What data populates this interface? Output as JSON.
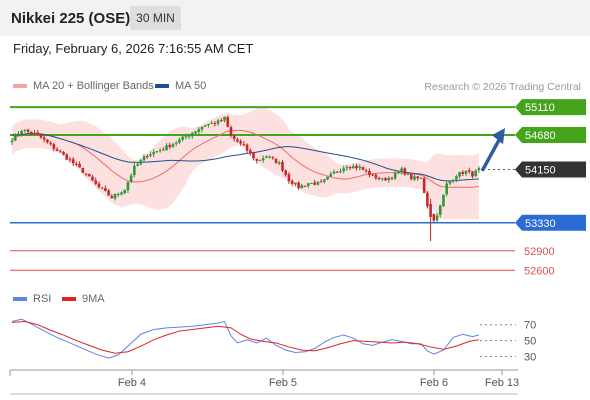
{
  "header": {
    "title": "Nikkei 225 (OSE)",
    "timeframe": "30 MIN",
    "datetime": "Friday, February 6, 2026 7:16:55 AM CET"
  },
  "legend": {
    "ma20_label": "MA 20 + Bollinger Bands",
    "ma50_label": "MA 50",
    "credit": "Research © 2026 Trading Central",
    "rsi_label": "RSI",
    "rsi_ma_label": "9MA"
  },
  "colors": {
    "ma20": "#f06b6b",
    "bollinger_fill": "#fde0e0",
    "ma50": "#1f4f8f",
    "candle_up": "#2e9a37",
    "candle_down": "#c62828",
    "resistance": "#44a51c",
    "pivot": "#2a6bd6",
    "support": "#e05050",
    "last_price_bg": "#333333",
    "arrow": "#2d5d9f",
    "rsi": "#5b87e0",
    "rsi_ma": "#e02424"
  },
  "chart_data": [
    {
      "type": "candlestick",
      "x_ticks": [
        "Feb 4",
        "Feb 5",
        "Feb 6",
        "Feb 13"
      ],
      "y_range": [
        52450,
        55250
      ],
      "levels": [
        {
          "value": 55110,
          "kind": "resistance",
          "label": "55110"
        },
        {
          "value": 54680,
          "kind": "resistance",
          "label": "54680"
        },
        {
          "value": 54150,
          "kind": "last-price",
          "label": "54150"
        },
        {
          "value": 53330,
          "kind": "pivot",
          "label": "53330"
        },
        {
          "value": 52900,
          "kind": "support",
          "label": "52900"
        },
        {
          "value": 52600,
          "kind": "support",
          "label": "52600"
        }
      ],
      "path_points": [
        [
          0,
          54620
        ],
        [
          3,
          54760
        ],
        [
          8,
          54680
        ],
        [
          13,
          54480
        ],
        [
          18,
          54290
        ],
        [
          22,
          54120
        ],
        [
          27,
          53870
        ],
        [
          31,
          53720
        ],
        [
          35,
          53850
        ],
        [
          38,
          54180
        ],
        [
          42,
          54380
        ],
        [
          47,
          54470
        ],
        [
          52,
          54600
        ],
        [
          56,
          54720
        ],
        [
          60,
          54840
        ],
        [
          64,
          54880
        ],
        [
          66,
          54940
        ],
        [
          68,
          54660
        ],
        [
          72,
          54500
        ],
        [
          76,
          54280
        ],
        [
          79,
          54360
        ],
        [
          83,
          54240
        ],
        [
          86,
          53990
        ],
        [
          89,
          53880
        ],
        [
          92,
          53940
        ],
        [
          96,
          53930
        ],
        [
          100,
          54100
        ],
        [
          104,
          54210
        ],
        [
          108,
          54180
        ],
        [
          112,
          54050
        ],
        [
          115,
          53990
        ],
        [
          118,
          54040
        ],
        [
          121,
          54140
        ],
        [
          124,
          54020
        ],
        [
          127,
          54010
        ],
        [
          129,
          53600
        ],
        [
          131,
          53360
        ],
        [
          133,
          53580
        ],
        [
          135,
          53920
        ],
        [
          138,
          54070
        ],
        [
          141,
          54120
        ],
        [
          143,
          54070
        ],
        [
          145,
          54150
        ]
      ],
      "breakdown_candle": {
        "index": 130,
        "open": 53620,
        "close": 53420,
        "high": 53700,
        "low": 53050
      },
      "forecast_arrow": {
        "from_value": 54150,
        "to_value": 55110
      }
    },
    {
      "type": "line",
      "title": "RSI",
      "y_ticks": [
        70,
        50,
        30
      ],
      "y_range": [
        18,
        86
      ],
      "series": [
        {
          "name": "RSI",
          "points": [
            [
              0,
              74
            ],
            [
              3,
              77
            ],
            [
              6,
              71
            ],
            [
              10,
              62
            ],
            [
              14,
              54
            ],
            [
              18,
              47
            ],
            [
              22,
              40
            ],
            [
              26,
              33
            ],
            [
              30,
              28
            ],
            [
              33,
              32
            ],
            [
              36,
              43
            ],
            [
              40,
              58
            ],
            [
              44,
              64
            ],
            [
              48,
              66
            ],
            [
              52,
              67
            ],
            [
              56,
              68
            ],
            [
              60,
              70
            ],
            [
              64,
              72
            ],
            [
              66,
              74
            ],
            [
              68,
              56
            ],
            [
              70,
              47
            ],
            [
              73,
              51
            ],
            [
              76,
              47
            ],
            [
              79,
              53
            ],
            [
              82,
              44
            ],
            [
              85,
              38
            ],
            [
              88,
              35
            ],
            [
              91,
              36
            ],
            [
              94,
              40
            ],
            [
              97,
              48
            ],
            [
              100,
              54
            ],
            [
              103,
              57
            ],
            [
              106,
              53
            ],
            [
              109,
              46
            ],
            [
              112,
              44
            ],
            [
              115,
              48
            ],
            [
              118,
              51
            ],
            [
              121,
              49
            ],
            [
              124,
              46
            ],
            [
              127,
              46
            ],
            [
              129,
              37
            ],
            [
              131,
              33
            ],
            [
              134,
              38
            ],
            [
              137,
              54
            ],
            [
              140,
              58
            ],
            [
              143,
              55
            ],
            [
              145,
              57
            ]
          ]
        },
        {
          "name": "9MA",
          "points": [
            [
              0,
              73
            ],
            [
              4,
              74
            ],
            [
              8,
              70
            ],
            [
              12,
              63
            ],
            [
              16,
              57
            ],
            [
              20,
              50
            ],
            [
              24,
              44
            ],
            [
              28,
              38
            ],
            [
              32,
              34
            ],
            [
              36,
              36
            ],
            [
              40,
              43
            ],
            [
              44,
              51
            ],
            [
              48,
              57
            ],
            [
              52,
              62
            ],
            [
              56,
              64
            ],
            [
              60,
              66
            ],
            [
              64,
              68
            ],
            [
              68,
              66
            ],
            [
              71,
              58
            ],
            [
              74,
              52
            ],
            [
              78,
              49
            ],
            [
              82,
              47
            ],
            [
              86,
              42
            ],
            [
              90,
              38
            ],
            [
              94,
              37
            ],
            [
              98,
              41
            ],
            [
              102,
              46
            ],
            [
              106,
              50
            ],
            [
              110,
              49
            ],
            [
              114,
              48
            ],
            [
              118,
              47
            ],
            [
              122,
              48
            ],
            [
              126,
              46
            ],
            [
              130,
              42
            ],
            [
              134,
              39
            ],
            [
              138,
              43
            ],
            [
              142,
              49
            ],
            [
              145,
              51
            ]
          ]
        }
      ]
    }
  ]
}
